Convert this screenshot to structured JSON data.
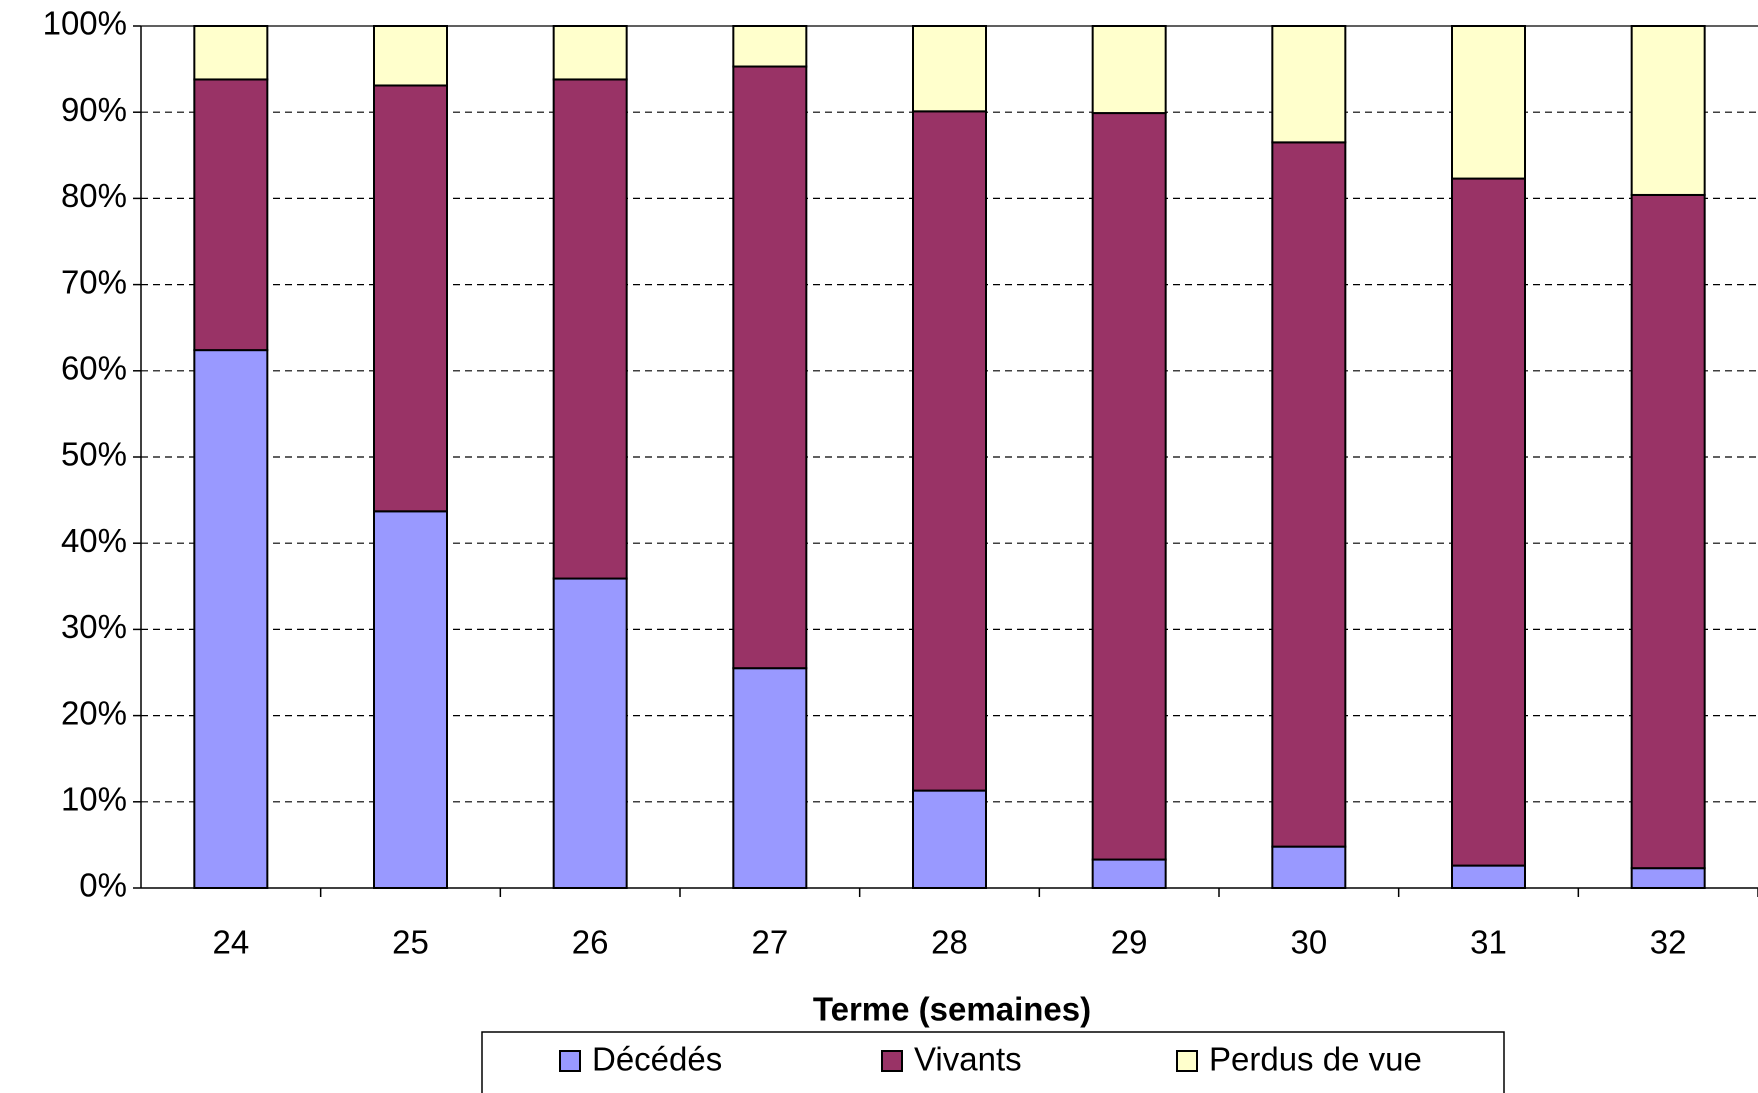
{
  "chart_data": {
    "type": "stacked_bar",
    "x_label": "Terme (semaines)",
    "categories": [
      "24",
      "25",
      "26",
      "27",
      "28",
      "29",
      "30",
      "31",
      "32"
    ],
    "series": [
      {
        "name": "Décédés",
        "color": "#9999ff",
        "values": [
          62.4,
          43.7,
          35.9,
          25.5,
          11.3,
          3.3,
          4.8,
          2.6,
          2.3
        ]
      },
      {
        "name": "Vivants",
        "color": "#993366",
        "values": [
          31.4,
          49.4,
          57.9,
          69.8,
          78.8,
          86.6,
          81.7,
          79.7,
          78.1
        ]
      },
      {
        "name": "Perdus de vue",
        "color": "#ffffcc",
        "values": [
          6.2,
          6.9,
          6.2,
          4.7,
          9.9,
          10.1,
          13.5,
          17.7,
          19.6
        ]
      }
    ],
    "ylim": [
      0,
      100
    ],
    "yticks": [
      {
        "value": 0,
        "label": "0%"
      },
      {
        "value": 10,
        "label": "10%"
      },
      {
        "value": 20,
        "label": "20%"
      },
      {
        "value": 30,
        "label": "30%"
      },
      {
        "value": 40,
        "label": "40%"
      },
      {
        "value": 50,
        "label": "50%"
      },
      {
        "value": 60,
        "label": "60%"
      },
      {
        "value": 70,
        "label": "70%"
      },
      {
        "value": 80,
        "label": "80%"
      },
      {
        "value": 90,
        "label": "90%"
      },
      {
        "value": 100,
        "label": "100%"
      }
    ],
    "grid": true,
    "legend": "bottom"
  }
}
